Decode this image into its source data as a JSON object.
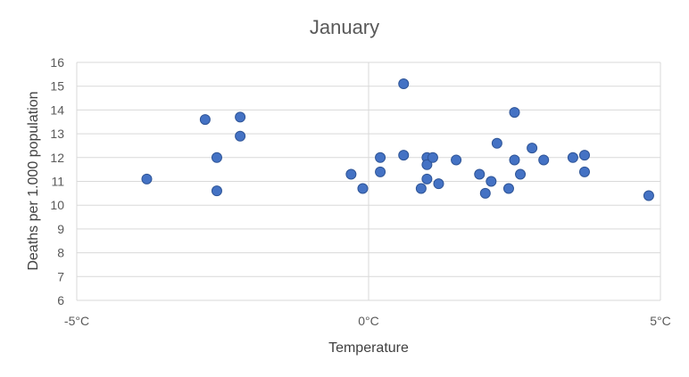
{
  "chart_data": {
    "type": "scatter",
    "title": "January",
    "xlabel": "Temperature",
    "ylabel": "Deaths per 1.000 population",
    "xlim": [
      -5,
      5
    ],
    "ylim": [
      6,
      16
    ],
    "x_ticks": [
      {
        "value": -5,
        "label": "-5°C"
      },
      {
        "value": 0,
        "label": "0°C"
      },
      {
        "value": 5,
        "label": "5°C"
      }
    ],
    "y_ticks": [
      {
        "value": 6,
        "label": "6"
      },
      {
        "value": 7,
        "label": "7"
      },
      {
        "value": 8,
        "label": "8"
      },
      {
        "value": 9,
        "label": "9"
      },
      {
        "value": 10,
        "label": "10"
      },
      {
        "value": 11,
        "label": "11"
      },
      {
        "value": 12,
        "label": "12"
      },
      {
        "value": 13,
        "label": "13"
      },
      {
        "value": 14,
        "label": "14"
      },
      {
        "value": 15,
        "label": "15"
      },
      {
        "value": 16,
        "label": "16"
      }
    ],
    "grid": {
      "horizontal": true,
      "vertical": false
    },
    "legend": "none",
    "marker_color": "#4472c4",
    "points": [
      {
        "x": -3.8,
        "y": 11.1
      },
      {
        "x": -2.8,
        "y": 13.6
      },
      {
        "x": -2.6,
        "y": 12.0
      },
      {
        "x": -2.6,
        "y": 10.6
      },
      {
        "x": -2.2,
        "y": 13.7
      },
      {
        "x": -2.2,
        "y": 12.9
      },
      {
        "x": -0.3,
        "y": 11.3
      },
      {
        "x": -0.1,
        "y": 10.7
      },
      {
        "x": 0.2,
        "y": 12.0
      },
      {
        "x": 0.2,
        "y": 11.4
      },
      {
        "x": 0.6,
        "y": 15.1
      },
      {
        "x": 0.6,
        "y": 12.1
      },
      {
        "x": 0.9,
        "y": 10.7
      },
      {
        "x": 1.0,
        "y": 12.0
      },
      {
        "x": 1.0,
        "y": 11.7
      },
      {
        "x": 1.0,
        "y": 11.1
      },
      {
        "x": 1.1,
        "y": 12.0
      },
      {
        "x": 1.2,
        "y": 10.9
      },
      {
        "x": 1.5,
        "y": 11.9
      },
      {
        "x": 1.9,
        "y": 11.3
      },
      {
        "x": 2.0,
        "y": 10.5
      },
      {
        "x": 2.1,
        "y": 11.0
      },
      {
        "x": 2.2,
        "y": 12.6
      },
      {
        "x": 2.4,
        "y": 10.7
      },
      {
        "x": 2.5,
        "y": 13.9
      },
      {
        "x": 2.5,
        "y": 11.9
      },
      {
        "x": 2.6,
        "y": 11.3
      },
      {
        "x": 2.8,
        "y": 12.4
      },
      {
        "x": 3.0,
        "y": 11.9
      },
      {
        "x": 3.5,
        "y": 12.0
      },
      {
        "x": 3.7,
        "y": 12.1
      },
      {
        "x": 3.7,
        "y": 11.4
      },
      {
        "x": 4.8,
        "y": 10.4
      }
    ]
  }
}
